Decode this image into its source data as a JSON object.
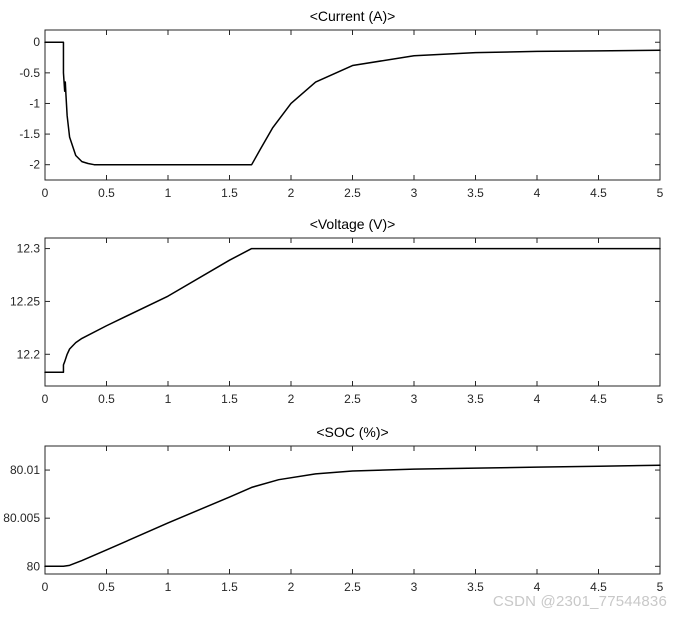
{
  "watermark": "CSDN @2301_77544836",
  "chart_data": [
    {
      "type": "line",
      "title": "<Current (A)>",
      "xlabel": "",
      "ylabel": "",
      "xlim": [
        0,
        5
      ],
      "ylim": [
        -2.25,
        0.2
      ],
      "xticks": [
        "0",
        "0.5",
        "1",
        "1.5",
        "2",
        "2.5",
        "3",
        "3.5",
        "4",
        "4.5",
        "5"
      ],
      "yticks": [
        "0",
        "-0.5",
        "-1",
        "-1.5",
        "-2"
      ],
      "ytick_values": [
        0,
        -0.5,
        -1,
        -1.5,
        -2
      ],
      "grid": false,
      "line_color": "#000000",
      "series": [
        {
          "x": [
            0,
            0.15,
            0.15,
            0.16,
            0.165,
            0.17,
            0.18,
            0.2,
            0.25,
            0.3,
            0.35,
            0.4,
            0.5,
            1.0,
            1.5,
            1.68,
            1.75,
            1.85,
            2.0,
            2.2,
            2.5,
            3.0,
            3.5,
            4.0,
            4.5,
            5.0
          ],
          "y": [
            0,
            0,
            -0.5,
            -0.8,
            -0.65,
            -0.85,
            -1.2,
            -1.55,
            -1.85,
            -1.95,
            -1.98,
            -2.0,
            -2.0,
            -2.0,
            -2.0,
            -2.0,
            -1.75,
            -1.4,
            -1.0,
            -0.65,
            -0.38,
            -0.22,
            -0.17,
            -0.15,
            -0.14,
            -0.13
          ]
        }
      ]
    },
    {
      "type": "line",
      "title": "<Voltage (V)>",
      "xlabel": "",
      "ylabel": "",
      "xlim": [
        0,
        5
      ],
      "ylim": [
        12.17,
        12.31
      ],
      "xticks": [
        "0",
        "0.5",
        "1",
        "1.5",
        "2",
        "2.5",
        "3",
        "3.5",
        "4",
        "4.5",
        "5"
      ],
      "yticks": [
        "12.3",
        "12.25",
        "12.2"
      ],
      "ytick_values": [
        12.3,
        12.25,
        12.2
      ],
      "grid": false,
      "line_color": "#000000",
      "series": [
        {
          "x": [
            0,
            0.15,
            0.15,
            0.16,
            0.18,
            0.2,
            0.25,
            0.3,
            0.5,
            1.0,
            1.5,
            1.68,
            2.0,
            3.0,
            4.0,
            5.0
          ],
          "y": [
            12.183,
            12.183,
            12.19,
            12.193,
            12.2,
            12.205,
            12.211,
            12.215,
            12.227,
            12.255,
            12.289,
            12.3,
            12.3,
            12.3,
            12.3,
            12.3
          ]
        }
      ]
    },
    {
      "type": "line",
      "title": "<SOC (%)>",
      "xlabel": "",
      "ylabel": "",
      "xlim": [
        0,
        5
      ],
      "ylim": [
        79.9992,
        80.0125
      ],
      "xticks": [
        "0",
        "0.5",
        "1",
        "1.5",
        "2",
        "2.5",
        "3",
        "3.5",
        "4",
        "4.5",
        "5"
      ],
      "yticks": [
        "80.01",
        "80.005",
        "80"
      ],
      "ytick_values": [
        80.01,
        80.005,
        80.0
      ],
      "grid": false,
      "line_color": "#000000",
      "series": [
        {
          "x": [
            0,
            0.15,
            0.2,
            0.3,
            0.5,
            1.0,
            1.5,
            1.68,
            1.9,
            2.2,
            2.5,
            3.0,
            3.5,
            4.0,
            4.5,
            5.0
          ],
          "y": [
            80.0,
            80.0,
            80.0001,
            80.0006,
            80.0017,
            80.0045,
            80.0072,
            80.0082,
            80.009,
            80.0096,
            80.0099,
            80.0101,
            80.0102,
            80.0103,
            80.0104,
            80.0105
          ]
        }
      ]
    }
  ]
}
